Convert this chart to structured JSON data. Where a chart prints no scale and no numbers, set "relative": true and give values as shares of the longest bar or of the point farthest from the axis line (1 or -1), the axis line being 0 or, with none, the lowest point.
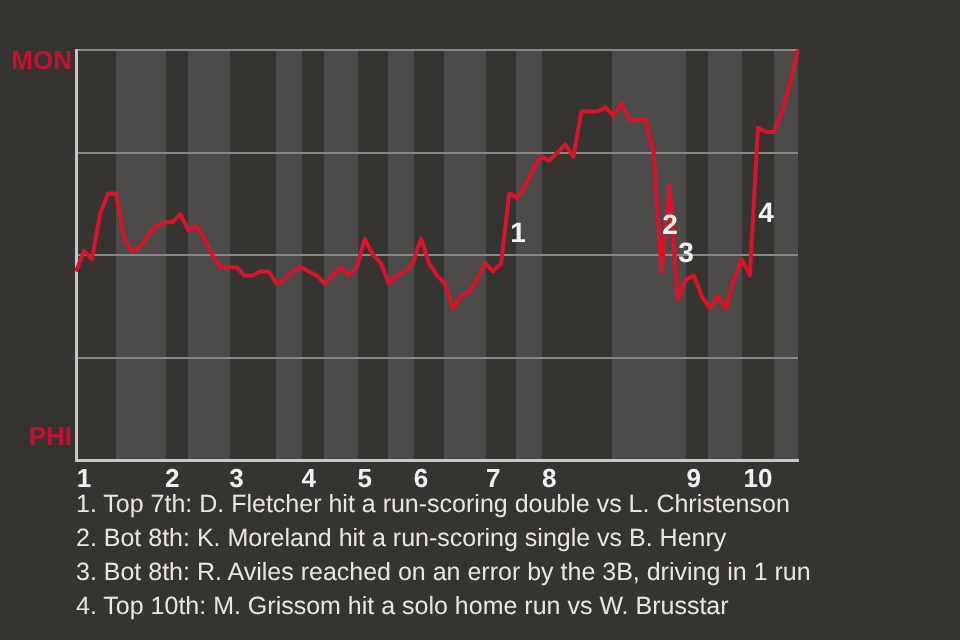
{
  "chart_data": {
    "type": "line",
    "relative": true,
    "categories": [
      null,
      "1",
      null,
      null,
      null,
      null,
      null,
      null,
      null,
      null,
      null,
      null,
      "2",
      null,
      null,
      null,
      null,
      null,
      null,
      null,
      "3",
      null,
      null,
      null,
      null,
      null,
      null,
      null,
      null,
      "4",
      null,
      null,
      null,
      null,
      null,
      null,
      "5",
      null,
      null,
      null,
      null,
      null,
      null,
      "6",
      null,
      null,
      null,
      null,
      null,
      null,
      null,
      null,
      "7",
      null,
      null,
      null,
      null,
      null,
      null,
      "8",
      null,
      null,
      null,
      null,
      null,
      null,
      null,
      null,
      null,
      null,
      null,
      null,
      null,
      null,
      null,
      null,
      null,
      "9",
      null,
      null,
      null,
      null,
      null,
      null,
      null,
      "10",
      null,
      null,
      null,
      null,
      null
    ],
    "series": [
      {
        "color": "#d8142b",
        "values": [
          0.46,
          0.51,
          0.49,
          0.6,
          0.65,
          0.65,
          0.54,
          0.51,
          0.52,
          0.55,
          0.57,
          0.58,
          0.58,
          0.6,
          0.56,
          0.57,
          0.54,
          0.5,
          0.47,
          0.47,
          0.47,
          0.45,
          0.45,
          0.46,
          0.46,
          0.43,
          0.44,
          0.46,
          0.47,
          0.46,
          0.45,
          0.43,
          0.45,
          0.47,
          0.45,
          0.47,
          0.54,
          0.5,
          0.48,
          0.43,
          0.45,
          0.46,
          0.48,
          0.54,
          0.48,
          0.45,
          0.43,
          0.37,
          0.4,
          0.41,
          0.44,
          0.48,
          0.46,
          0.48,
          0.65,
          0.64,
          0.67,
          0.71,
          0.74,
          0.73,
          0.75,
          0.77,
          0.74,
          0.85,
          0.85,
          0.85,
          0.86,
          0.84,
          0.87,
          0.83,
          0.83,
          0.83,
          0.75,
          0.46,
          0.67,
          0.39,
          0.44,
          0.45,
          0.4,
          0.37,
          0.4,
          0.37,
          0.44,
          0.49,
          0.45,
          0.81,
          0.8,
          0.8,
          0.85,
          0.92,
          1.0
        ]
      }
    ],
    "grid": "y",
    "annotations": [
      "MON",
      "PHI",
      "1",
      "2",
      "3",
      "4",
      "1. Top 7th: D. Fletcher hit a run-scoring double vs L. Christenson",
      "2. Bot 8th: K. Moreland hit a run-scoring single vs B. Henry",
      "3. Bot 8th: R. Aviles reached on an error by the 3B, driving in 1 run",
      "4. Top 10th: M. Grissom hit a solo home run vs W. Brusstar"
    ]
  }
}
